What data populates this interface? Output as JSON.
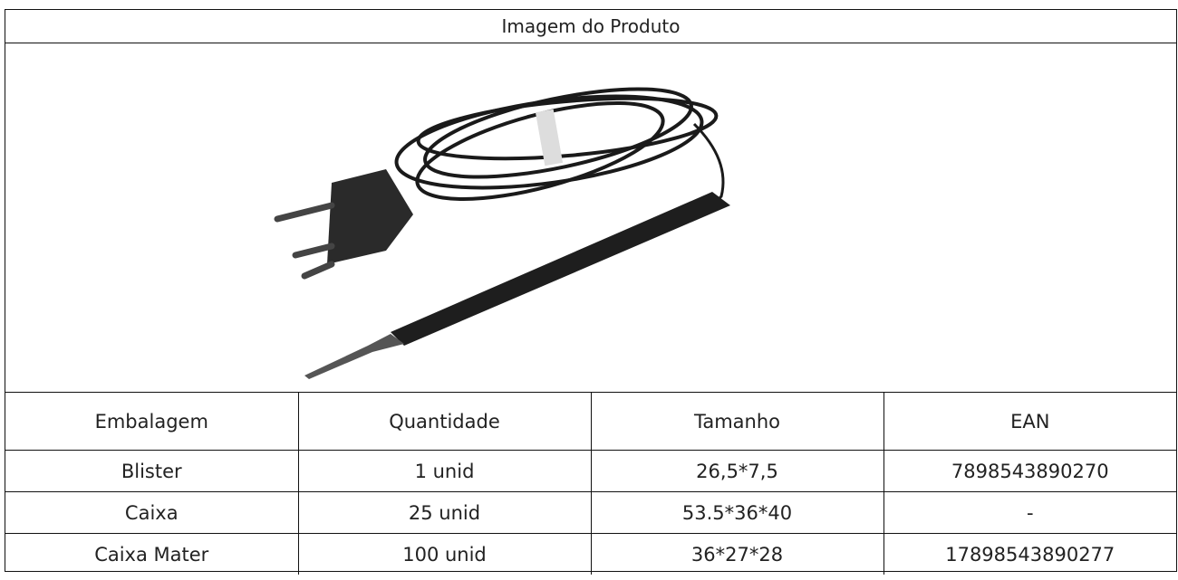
{
  "header": {
    "title": "Imagem do Produto"
  },
  "table": {
    "columns": [
      "Embalagem",
      "Quantidade",
      "Tamanho",
      "EAN"
    ],
    "rows": [
      [
        "Blister",
        "1 unid",
        "26,5*7,5",
        "7898543890270"
      ],
      [
        "Caixa",
        "25 unid",
        "53.5*36*40",
        "-"
      ],
      [
        "Caixa Mater",
        "100 unid",
        "36*27*28",
        "17898543890277"
      ]
    ]
  }
}
